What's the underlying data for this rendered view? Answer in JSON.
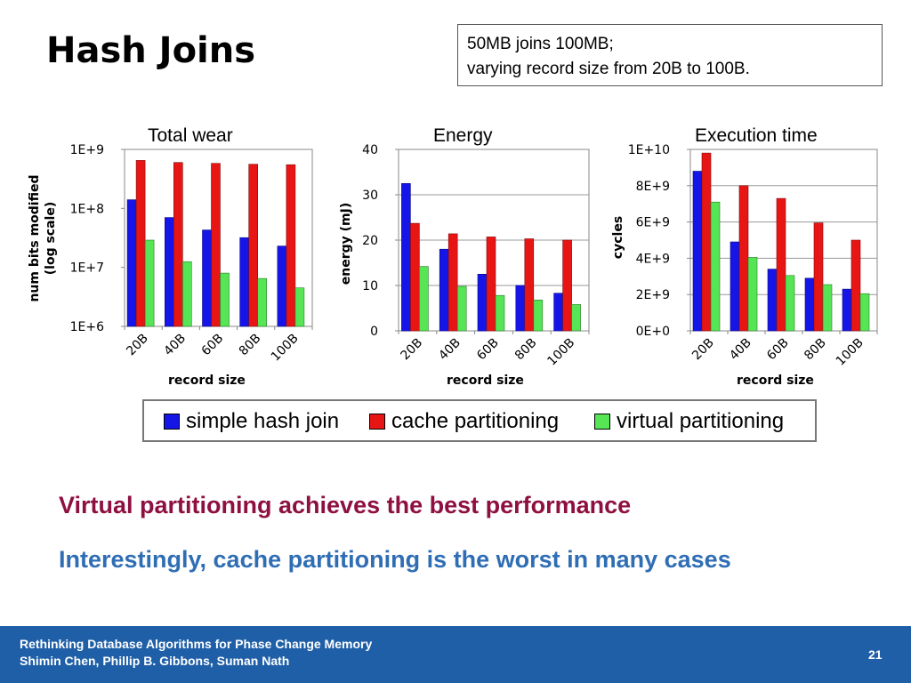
{
  "slide": {
    "title": "Hash Joins",
    "note": {
      "line1": "50MB joins 100MB;",
      "line2": "varying record size from 20B to 100B."
    },
    "message_red": "Virtual partitioning achieves the best performance",
    "message_blue": "Interestingly, cache partitioning is the worst in many cases"
  },
  "legend": [
    {
      "name": "simple hash join",
      "color": "#1515e8"
    },
    {
      "name": "cache partitioning",
      "color": "#e81515"
    },
    {
      "name": "virtual partitioning",
      "color": "#55e555"
    }
  ],
  "footer": {
    "line1": "Rethinking Database Algorithms for Phase Change Memory",
    "line2": "Shimin Chen, Phillip B. Gibbons, Suman Nath",
    "page": "21"
  },
  "chart_data": [
    {
      "type": "bar",
      "title": "Total wear",
      "xlabel": "record size",
      "ylabel": "num bits modified (log scale)",
      "ylabel_lines": [
        "num bits modified",
        "(log scale)"
      ],
      "yscale": "log",
      "ylim": [
        1000000,
        1000000000
      ],
      "yticks": [
        1000000,
        10000000,
        100000000,
        1000000000
      ],
      "yticklabels": [
        "1E+6",
        "1E+7",
        "1E+8",
        "1E+9"
      ],
      "grid": false,
      "categories": [
        "20B",
        "40B",
        "60B",
        "80B",
        "100B"
      ],
      "series": [
        {
          "name": "simple hash join",
          "values": [
            140000000,
            70000000,
            43000000,
            32000000,
            23000000
          ]
        },
        {
          "name": "cache partitioning",
          "values": [
            650000000,
            600000000,
            580000000,
            560000000,
            550000000
          ]
        },
        {
          "name": "virtual partitioning",
          "values": [
            29000000,
            12500000,
            8000000,
            6500000,
            4500000
          ]
        }
      ]
    },
    {
      "type": "bar",
      "title": "Energy",
      "xlabel": "record size",
      "ylabel": "energy (mJ)",
      "ylabel_lines": [
        "energy (mJ)"
      ],
      "yscale": "linear",
      "ylim": [
        0,
        40
      ],
      "yticks": [
        0,
        10,
        20,
        30,
        40
      ],
      "yticklabels": [
        "0",
        "10",
        "20",
        "30",
        "40"
      ],
      "grid": true,
      "categories": [
        "20B",
        "40B",
        "60B",
        "80B",
        "100B"
      ],
      "series": [
        {
          "name": "simple hash join",
          "values": [
            32.5,
            18,
            12.5,
            10,
            8.3
          ]
        },
        {
          "name": "cache partitioning",
          "values": [
            23.7,
            21.4,
            20.7,
            20.3,
            20
          ]
        },
        {
          "name": "virtual partitioning",
          "values": [
            14.2,
            9.8,
            7.8,
            6.8,
            5.8
          ]
        }
      ]
    },
    {
      "type": "bar",
      "title": "Execution time",
      "xlabel": "record size",
      "ylabel": "cycles",
      "ylabel_lines": [
        "cycles"
      ],
      "yscale": "linear",
      "ylim": [
        0,
        10000000000
      ],
      "yticks": [
        0,
        2000000000,
        4000000000,
        6000000000,
        8000000000,
        10000000000
      ],
      "yticklabels": [
        "0E+0",
        "2E+9",
        "4E+9",
        "6E+9",
        "8E+9",
        "1E+10"
      ],
      "grid": true,
      "categories": [
        "20B",
        "40B",
        "60B",
        "80B",
        "100B"
      ],
      "series": [
        {
          "name": "simple hash join",
          "values": [
            8800000000,
            4900000000,
            3400000000,
            2900000000,
            2300000000
          ]
        },
        {
          "name": "cache partitioning",
          "values": [
            9800000000,
            8000000000,
            7300000000,
            5950000000,
            5000000000
          ]
        },
        {
          "name": "virtual partitioning",
          "values": [
            7100000000,
            4050000000,
            3050000000,
            2550000000,
            2050000000
          ]
        }
      ]
    }
  ]
}
